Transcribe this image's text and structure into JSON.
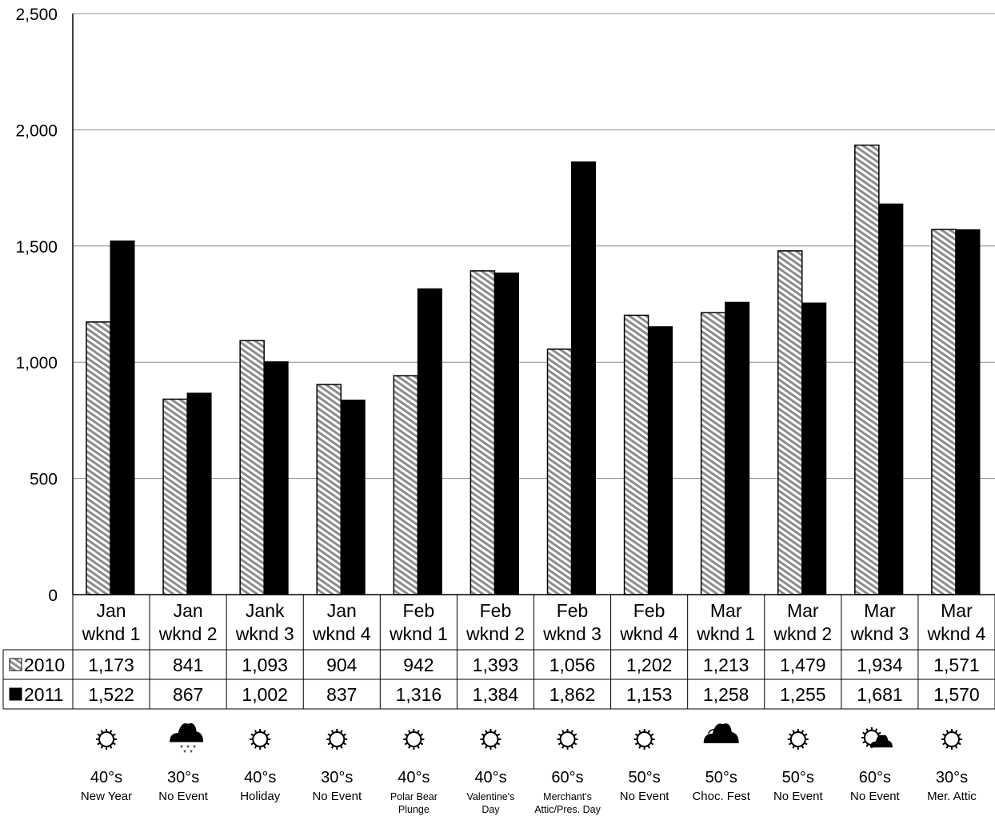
{
  "chart_data": {
    "type": "bar",
    "categories": [
      [
        "Jan",
        "wknd 1"
      ],
      [
        "Jan",
        "wknd 2"
      ],
      [
        "Jank",
        "wknd 3"
      ],
      [
        "Jan",
        "wknd 4"
      ],
      [
        "Feb",
        "wknd 1"
      ],
      [
        "Feb",
        "wknd 2"
      ],
      [
        "Feb",
        "wknd 3"
      ],
      [
        "Feb",
        "wknd 4"
      ],
      [
        "Mar",
        "wknd 1"
      ],
      [
        "Mar",
        "wknd 2"
      ],
      [
        "Mar",
        "wknd 3"
      ],
      [
        "Mar",
        "wknd 4"
      ]
    ],
    "series": [
      {
        "name": "2010",
        "fill": "hatch",
        "values": [
          1173,
          841,
          1093,
          904,
          942,
          1393,
          1056,
          1202,
          1213,
          1479,
          1934,
          1571
        ]
      },
      {
        "name": "2011",
        "fill": "#000000",
        "values": [
          1522,
          867,
          1002,
          837,
          1316,
          1384,
          1862,
          1153,
          1258,
          1255,
          1681,
          1570
        ]
      }
    ],
    "table_values": {
      "2010": [
        "1,173",
        "841",
        "1,093",
        "904",
        "942",
        "1,393",
        "1,056",
        "1,202",
        "1,213",
        "1,479",
        "1,934",
        "1,571"
      ],
      "2011": [
        "1,522",
        "867",
        "1,002",
        "837",
        "1,316",
        "1,384",
        "1,862",
        "1,153",
        "1,258",
        "1,255",
        "1,681",
        "1,570"
      ]
    },
    "yticks": [
      "0",
      "500",
      "1,000",
      "1,500",
      "2,000",
      "2,500"
    ],
    "ylim": [
      0,
      2500
    ],
    "grid": true,
    "legend": "data-table-left",
    "weather": [
      {
        "icon": "sun-icon",
        "temp": "40°s",
        "event": [
          "New Year"
        ]
      },
      {
        "icon": "snow-cloud-icon",
        "temp": "30°s",
        "event": [
          "No Event"
        ]
      },
      {
        "icon": "sun-icon",
        "temp": "40°s",
        "event": [
          "Holiday"
        ]
      },
      {
        "icon": "sun-icon",
        "temp": "30°s",
        "event": [
          "No Event"
        ]
      },
      {
        "icon": "sun-icon",
        "temp": "40°s",
        "event": [
          "Polar Bear",
          "Plunge"
        ]
      },
      {
        "icon": "sun-icon",
        "temp": "40°s",
        "event": [
          "Valentine's",
          "Day"
        ]
      },
      {
        "icon": "sun-icon",
        "temp": "60°s",
        "event": [
          "Merchant's",
          "Attic/Pres. Day"
        ]
      },
      {
        "icon": "sun-icon",
        "temp": "50°s",
        "event": [
          "No Event"
        ]
      },
      {
        "icon": "cloudy-icon",
        "temp": "50°s",
        "event": [
          "Choc. Fest"
        ]
      },
      {
        "icon": "sun-icon",
        "temp": "50°s",
        "event": [
          "No Event"
        ]
      },
      {
        "icon": "partly-cloudy-icon",
        "temp": "60°s",
        "event": [
          "No Event"
        ]
      },
      {
        "icon": "sun-icon",
        "temp": "30°s",
        "event": [
          "Mer. Attic"
        ]
      }
    ]
  }
}
